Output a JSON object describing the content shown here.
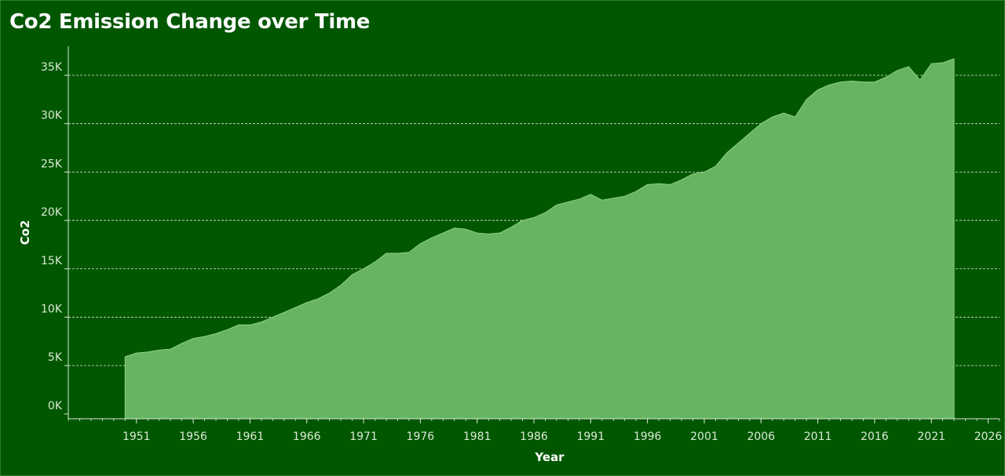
{
  "chart_data": {
    "type": "area",
    "title": "Co2 Emission Change over Time",
    "xlabel": "Year",
    "ylabel": "Co2",
    "xlim": [
      1945,
      2027
    ],
    "ylim": [
      -500,
      38000
    ],
    "xticks": [
      1951,
      1956,
      1961,
      1966,
      1971,
      1976,
      1981,
      1986,
      1991,
      1996,
      2001,
      2006,
      2011,
      2016,
      2021,
      2026
    ],
    "yticks": [
      0,
      5000,
      10000,
      15000,
      20000,
      25000,
      30000,
      35000
    ],
    "ytick_labels": [
      "0K",
      "5K",
      "10K",
      "15K",
      "20K",
      "25K",
      "30K",
      "35K"
    ],
    "grid": "horizontal-dashed",
    "colors": {
      "background": "#005700",
      "area": "#67b462",
      "area_edge": "#8fd08a",
      "gridline": "#e6e6e6"
    },
    "x": [
      1950,
      1951,
      1952,
      1953,
      1954,
      1955,
      1956,
      1957,
      1958,
      1959,
      1960,
      1961,
      1962,
      1963,
      1964,
      1965,
      1966,
      1967,
      1968,
      1969,
      1970,
      1971,
      1972,
      1973,
      1974,
      1975,
      1976,
      1977,
      1978,
      1979,
      1980,
      1981,
      1982,
      1983,
      1984,
      1985,
      1986,
      1987,
      1988,
      1989,
      1990,
      1991,
      1992,
      1993,
      1994,
      1995,
      1996,
      1997,
      1998,
      1999,
      2000,
      2001,
      2002,
      2003,
      2004,
      2005,
      2006,
      2007,
      2008,
      2009,
      2010,
      2011,
      2012,
      2013,
      2014,
      2015,
      2016,
      2017,
      2018,
      2019,
      2020,
      2021,
      2022,
      2023
    ],
    "values": [
      5900,
      6300,
      6400,
      6600,
      6700,
      7300,
      7800,
      8000,
      8300,
      8700,
      9200,
      9200,
      9500,
      10000,
      10500,
      11000,
      11500,
      11900,
      12500,
      13300,
      14400,
      15000,
      15700,
      16600,
      16600,
      16700,
      17600,
      18200,
      18700,
      19200,
      19100,
      18700,
      18600,
      18700,
      19300,
      20000,
      20300,
      20800,
      21600,
      21900,
      22200,
      22700,
      22100,
      22300,
      22500,
      23000,
      23700,
      23800,
      23700,
      24200,
      24800,
      25000,
      25600,
      27000,
      28000,
      29000,
      30000,
      30700,
      31100,
      30700,
      32500,
      33500,
      34000,
      34300,
      34400,
      34300,
      34300,
      34800,
      35500,
      35900,
      34500,
      36200,
      36300,
      36700
    ]
  }
}
